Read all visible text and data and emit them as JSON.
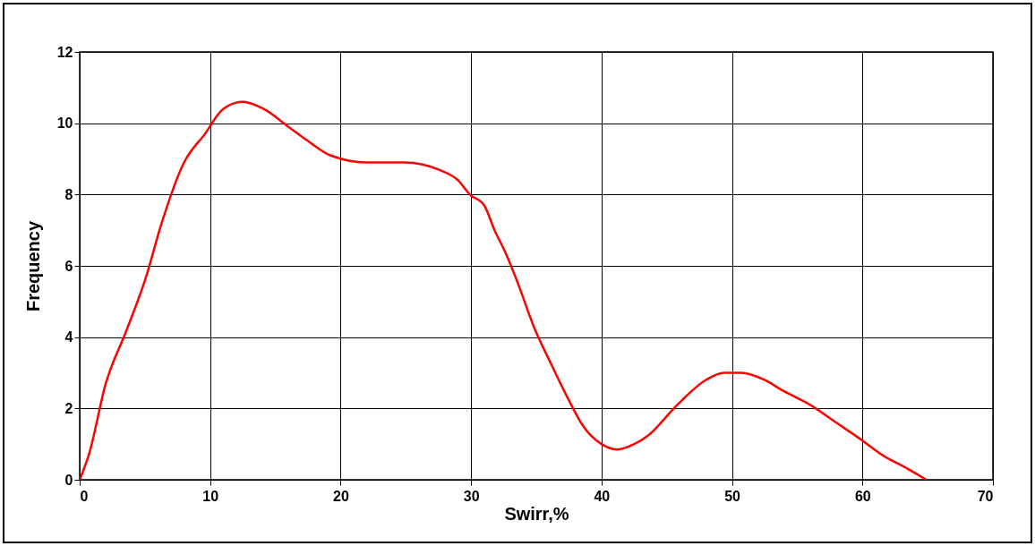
{
  "chart_data": {
    "type": "line",
    "xlabel": "Swirr,%",
    "ylabel": "Frequency",
    "x": [
      0,
      0.7,
      2,
      3.6,
      5.1,
      6.2,
      8,
      9.6,
      11,
      12.5,
      14.1,
      16,
      17.5,
      19.2,
      22,
      24.9,
      27.5,
      29,
      29.9,
      31,
      31.8,
      32.6,
      33.6,
      34.8,
      36.2,
      37.4,
      38.6,
      40,
      41.2,
      42.5,
      43.6,
      45.8,
      48,
      49.4,
      50.7,
      52.5,
      53.9,
      56,
      58,
      60,
      61.5,
      63.5,
      64.9
    ],
    "series": [
      {
        "color": "#ff0000",
        "values": [
          0,
          0.7,
          2.7,
          4.2,
          5.7,
          7.1,
          8.9,
          9.7,
          10.4,
          10.6,
          10.4,
          9.9,
          9.5,
          9.1,
          8.9,
          8.9,
          8.7,
          8.4,
          8,
          7.7,
          7,
          6.4,
          5.5,
          4.3,
          3.2,
          2.3,
          1.5,
          1,
          0.85,
          1,
          1.25,
          2.1,
          2.8,
          3,
          3,
          2.8,
          2.5,
          2.1,
          1.6,
          1.1,
          0.7,
          0.3,
          0
        ]
      }
    ],
    "xlim": [
      0,
      70
    ],
    "xticks": [
      0,
      10,
      20,
      30,
      40,
      50,
      60,
      70
    ],
    "ylim": [
      0,
      12
    ],
    "yticks": [
      0,
      2,
      4,
      6,
      8,
      10,
      12
    ],
    "grid": true,
    "marker": "none",
    "line_style": "solid"
  }
}
